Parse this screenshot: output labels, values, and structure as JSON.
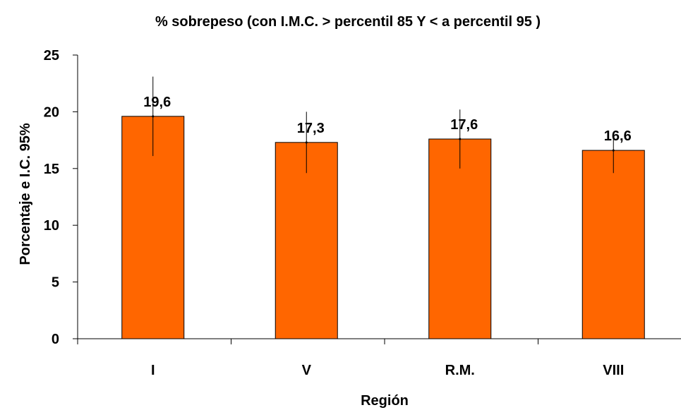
{
  "chart_data": {
    "type": "bar",
    "title": "% sobrepeso (con I.M.C. > percentil 85 Y < a percentil 95 )",
    "xlabel": "Región",
    "ylabel": "Porcentaje e I.C. 95%",
    "categories": [
      "I",
      "V",
      "R.M.",
      "VIII"
    ],
    "values": [
      19.6,
      17.3,
      17.6,
      16.6
    ],
    "data_labels": [
      "19,6",
      "17,3",
      "17,6",
      "16,6"
    ],
    "ci_low": [
      16.1,
      14.6,
      15.0,
      14.6
    ],
    "ci_high": [
      23.1,
      20.0,
      20.2,
      18.0
    ],
    "ylim": [
      0,
      25
    ],
    "yticks": [
      0,
      5,
      10,
      15,
      20,
      25
    ],
    "ytick_labels": [
      "0",
      "5",
      "10",
      "15",
      "20",
      "25"
    ],
    "grid": false,
    "legend": "none",
    "bar_color": "#ff6600",
    "bar_edge_color": "#000000"
  }
}
